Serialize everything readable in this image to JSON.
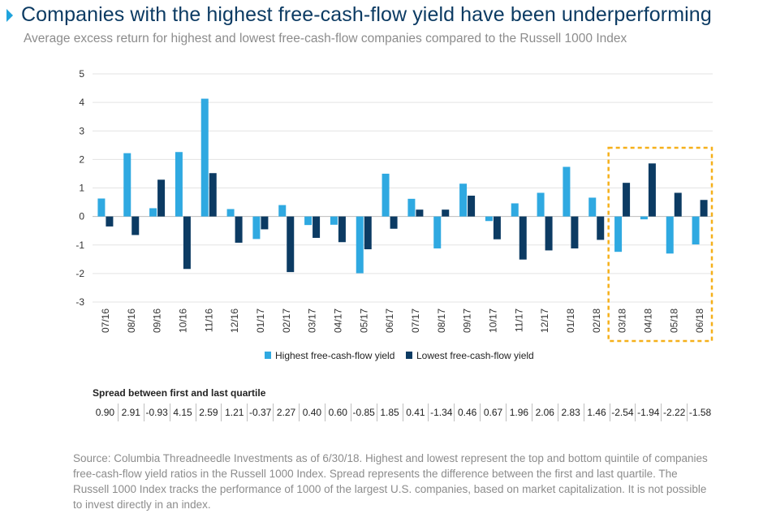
{
  "title": "Companies with the highest free-cash-flow yield have been underperforming",
  "subtitle": "Average excess return for highest and lowest free-cash-flow companies compared to the Russell 1000 Index",
  "chart_data": {
    "type": "bar",
    "categories": [
      "07/16",
      "08/16",
      "09/16",
      "10/16",
      "11/16",
      "12/16",
      "01/17",
      "02/17",
      "03/17",
      "04/17",
      "05/17",
      "06/17",
      "07/17",
      "08/17",
      "09/17",
      "10/17",
      "11/17",
      "12/17",
      "01/18",
      "02/18",
      "03/18",
      "04/18",
      "05/18",
      "06/18"
    ],
    "series": [
      {
        "name": "Highest free-cash-flow yield",
        "color": "#2fa9e1",
        "values": [
          0.63,
          2.22,
          0.29,
          2.26,
          4.13,
          0.26,
          -0.79,
          0.4,
          -0.3,
          -0.29,
          -1.99,
          1.5,
          0.62,
          -1.12,
          1.15,
          -0.16,
          0.46,
          0.83,
          1.74,
          0.66,
          -1.24,
          -0.1,
          -1.3,
          -0.98
        ]
      },
      {
        "name": "Lowest free-cash-flow yield",
        "color": "#0c3b63",
        "values": [
          -0.35,
          -0.65,
          1.29,
          -1.84,
          1.52,
          -0.92,
          -0.45,
          -1.95,
          -0.75,
          -0.9,
          -1.15,
          -0.43,
          0.24,
          0.24,
          0.73,
          -0.8,
          -1.51,
          -1.19,
          -1.12,
          -0.82,
          1.18,
          1.86,
          0.83,
          0.58
        ]
      }
    ],
    "ylim": [
      -3,
      5
    ],
    "yticks": [
      5,
      4,
      3,
      2,
      1,
      0,
      -1,
      -2,
      -3
    ],
    "grid": true,
    "legend": "bottom-center",
    "highlight": {
      "from": "03/18",
      "to": "06/18",
      "color": "#f5b01a"
    }
  },
  "legend": {
    "highest": "Highest free-cash-flow yield",
    "lowest": "Lowest free-cash-flow yield"
  },
  "spread": {
    "title": "Spread between first and last quartile",
    "values": [
      "0.90",
      "2.91",
      "-0.93",
      "4.15",
      "2.59",
      "1.21",
      "-0.37",
      "2.27",
      "0.40",
      "0.60",
      "-0.85",
      "1.85",
      "0.41",
      "-1.34",
      "0.46",
      "0.67",
      "1.96",
      "2.06",
      "2.83",
      "1.46",
      "-2.54",
      "-1.94",
      "-2.22",
      "-1.58"
    ]
  },
  "source": "Source: Columbia Threadneedle Investments as of 6/30/18. Highest and lowest represent the top and bottom quintile of companies free-cash-flow yield ratios in the Russell 1000 Index. Spread represents the difference between the first and last quartile. The Russell 1000 Index tracks the performance of 1000 of the largest U.S. companies, based on market capitalization. It is not possible to invest directly in an index."
}
